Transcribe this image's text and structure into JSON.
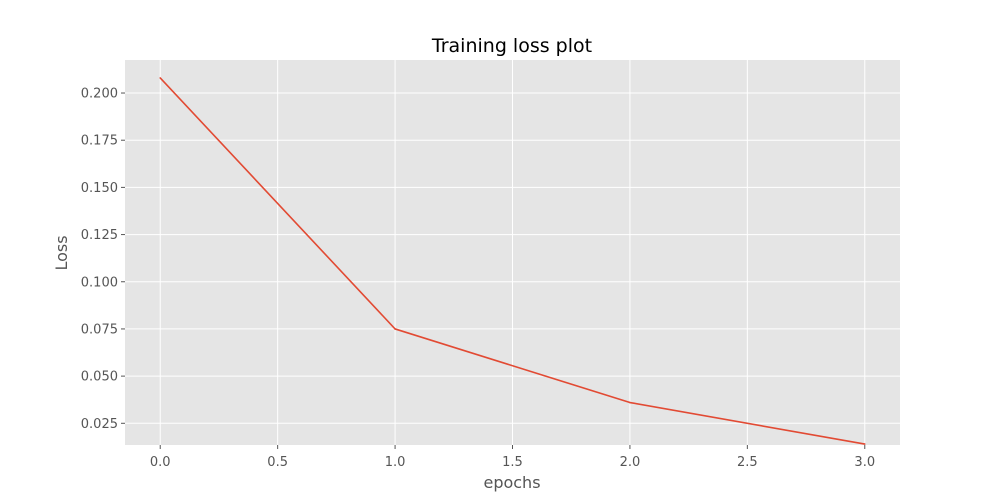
{
  "chart_data": {
    "type": "line",
    "title": "Training loss plot",
    "xlabel": "epochs",
    "ylabel": "Loss",
    "xlim": [
      -0.15,
      3.15
    ],
    "ylim": [
      0.0135,
      0.2175
    ],
    "x_ticks": [
      0.0,
      0.5,
      1.0,
      1.5,
      2.0,
      2.5,
      3.0
    ],
    "x_tick_labels": [
      "0.0",
      "0.5",
      "1.0",
      "1.5",
      "2.0",
      "2.5",
      "3.0"
    ],
    "y_ticks": [
      0.025,
      0.05,
      0.075,
      0.1,
      0.125,
      0.15,
      0.175,
      0.2
    ],
    "y_tick_labels": [
      "0.025",
      "0.050",
      "0.075",
      "0.100",
      "0.125",
      "0.150",
      "0.175",
      "0.200"
    ],
    "grid": true,
    "series": [
      {
        "x": [
          0,
          1,
          2,
          3
        ],
        "values": [
          0.208,
          0.075,
          0.036,
          0.014
        ],
        "color": "#E24A33"
      }
    ],
    "colors": {
      "plot_background": "#E5E5E5",
      "grid": "#FFFFFF"
    }
  }
}
